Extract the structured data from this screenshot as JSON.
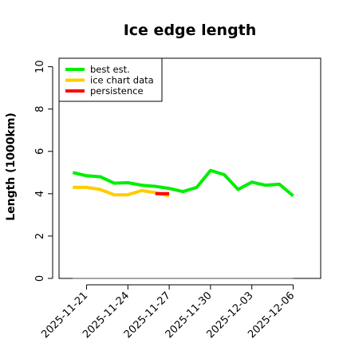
{
  "chart_data": {
    "type": "line",
    "title": "Ice edge length",
    "xlabel": "",
    "ylabel": "Length (1000km)",
    "ylim": [
      0,
      10.4
    ],
    "yticks": [
      0,
      2,
      4,
      6,
      8,
      10
    ],
    "xticks": [
      "2025-11-21",
      "2025-11-24",
      "2025-11-27",
      "2025-11-30",
      "2025-12-03",
      "2025-12-06"
    ],
    "xlim": [
      "2025-11-19",
      "2025-12-08"
    ],
    "grid": false,
    "legend_position": "top-left",
    "series": [
      {
        "name": "best est.",
        "color": "#00ee00",
        "points": [
          [
            "2025-11-20",
            5.0
          ],
          [
            "2025-11-21",
            4.85
          ],
          [
            "2025-11-22",
            4.8
          ],
          [
            "2025-11-23",
            4.5
          ],
          [
            "2025-11-24",
            4.52
          ],
          [
            "2025-11-25",
            4.4
          ],
          [
            "2025-11-26",
            4.35
          ],
          [
            "2025-11-27",
            4.25
          ],
          [
            "2025-11-28",
            4.1
          ],
          [
            "2025-11-29",
            4.3
          ],
          [
            "2025-11-30",
            5.1
          ],
          [
            "2025-12-01",
            4.9
          ],
          [
            "2025-12-02",
            4.2
          ],
          [
            "2025-12-03",
            4.55
          ],
          [
            "2025-12-04",
            4.4
          ],
          [
            "2025-12-05",
            4.45
          ],
          [
            "2025-12-06",
            3.9
          ]
        ]
      },
      {
        "name": "ice chart data",
        "color": "#ffcc00",
        "points": [
          [
            "2025-11-20",
            4.3
          ],
          [
            "2025-11-21",
            4.3
          ],
          [
            "2025-11-22",
            4.2
          ],
          [
            "2025-11-23",
            3.95
          ],
          [
            "2025-11-24",
            3.95
          ],
          [
            "2025-11-25",
            4.15
          ],
          [
            "2025-11-26",
            4.05
          ],
          [
            "2025-11-27",
            3.9
          ]
        ]
      },
      {
        "name": "persistence",
        "color": "#ff0000",
        "points": [
          [
            "2025-11-26",
            4.0
          ],
          [
            "2025-11-27",
            4.0
          ]
        ]
      }
    ],
    "reference_line": {
      "y": 0,
      "color": "#888888"
    }
  }
}
